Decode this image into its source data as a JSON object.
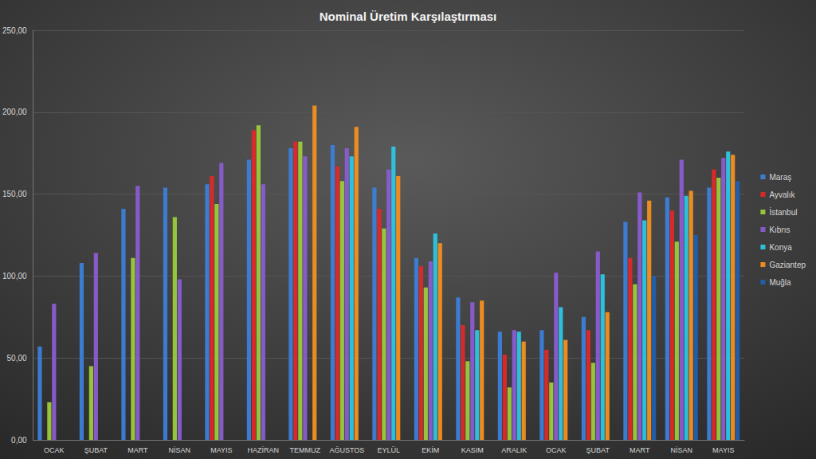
{
  "chart_data": {
    "type": "bar",
    "title": "Nominal Üretim Karşılaştırması",
    "categories": [
      "OCAK",
      "ŞUBAT",
      "MART",
      "NİSAN",
      "MAYIS",
      "HAZİRAN",
      "TEMMUZ",
      "AĞUSTOS",
      "EYLÜL",
      "EKİM",
      "KASIM",
      "ARALIK",
      "OCAK",
      "ŞUBAT",
      "MART",
      "NİSAN",
      "MAYIS"
    ],
    "series": [
      {
        "name": "Maraş",
        "color": "#3b7fd9",
        "values": [
          57,
          108,
          141,
          154,
          156,
          171,
          178,
          180,
          154,
          111,
          87,
          66,
          67,
          75,
          133,
          148,
          154
        ]
      },
      {
        "name": "Ayvalık",
        "color": "#e02828",
        "values": [
          null,
          null,
          null,
          null,
          161,
          189,
          182,
          167,
          141,
          106,
          70,
          52,
          55,
          67,
          111,
          140,
          165
        ]
      },
      {
        "name": "İstanbul",
        "color": "#9ccc3a",
        "values": [
          23,
          45,
          111,
          136,
          144,
          192,
          182,
          158,
          129,
          93,
          48,
          32,
          35,
          47,
          95,
          121,
          160
        ]
      },
      {
        "name": "Kıbrıs",
        "color": "#8a5cd0",
        "values": [
          83,
          114,
          155,
          98,
          169,
          156,
          173,
          178,
          165,
          109,
          84,
          67,
          102,
          115,
          151,
          171,
          172
        ]
      },
      {
        "name": "Konya",
        "color": "#2cc6e3",
        "values": [
          null,
          null,
          null,
          null,
          null,
          null,
          null,
          173,
          179,
          126,
          67,
          66,
          81,
          101,
          134,
          149,
          176
        ]
      },
      {
        "name": "Gaziantep",
        "color": "#f5901e",
        "values": [
          null,
          null,
          null,
          null,
          null,
          null,
          204,
          191,
          161,
          120,
          85,
          60,
          61,
          78,
          146,
          152,
          174
        ]
      },
      {
        "name": "Muğla",
        "color": "#1f5fb0",
        "values": [
          null,
          null,
          null,
          null,
          null,
          null,
          null,
          null,
          null,
          null,
          null,
          null,
          null,
          null,
          100,
          125,
          158
        ]
      }
    ],
    "ylim": [
      0,
      250
    ],
    "yticks": [
      {
        "value": 0,
        "label": "0,00"
      },
      {
        "value": 50,
        "label": "50,00"
      },
      {
        "value": 100,
        "label": "100,00"
      },
      {
        "value": 150,
        "label": "150,00"
      },
      {
        "value": 200,
        "label": "200,00"
      },
      {
        "value": 250,
        "label": "250,00"
      }
    ],
    "grid": true,
    "legend": "right"
  }
}
